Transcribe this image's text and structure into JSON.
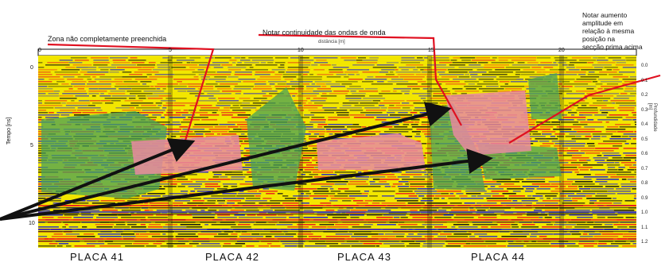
{
  "annotations": {
    "left_zone": "Zona não completamente preenchida",
    "center_note": "Notar continuidade das ondas de onda",
    "center_sub": "distância [m]",
    "right_note": "Notar aumento\namplitude em\nrelação à mesma\n posição na\nsecção prima acima"
  },
  "axes": {
    "y_label": "Tempo [ns]",
    "y_right_label": "Profundidade [m]",
    "y_ticks": [
      "0",
      "5",
      "10"
    ],
    "x_ticks": [
      "0",
      "5",
      "10",
      "15",
      "20"
    ],
    "right_ticks": [
      "0.0",
      "0.1",
      "0.2",
      "0.3",
      "0.4",
      "0.5",
      "0.6",
      "0.7",
      "0.8",
      "0.9",
      "1.0",
      "1.1",
      "1.2"
    ]
  },
  "plates": [
    "PLACA 41",
    "PLACA 42",
    "PLACA 43",
    "PLACA 44"
  ],
  "colors": {
    "yellow": "#f2e600",
    "red": "#e8141e",
    "blue": "#2222cc",
    "green": "#4aa05a",
    "pink": "#e88aa0",
    "black": "#111111",
    "annotation_line": "#e01020"
  }
}
